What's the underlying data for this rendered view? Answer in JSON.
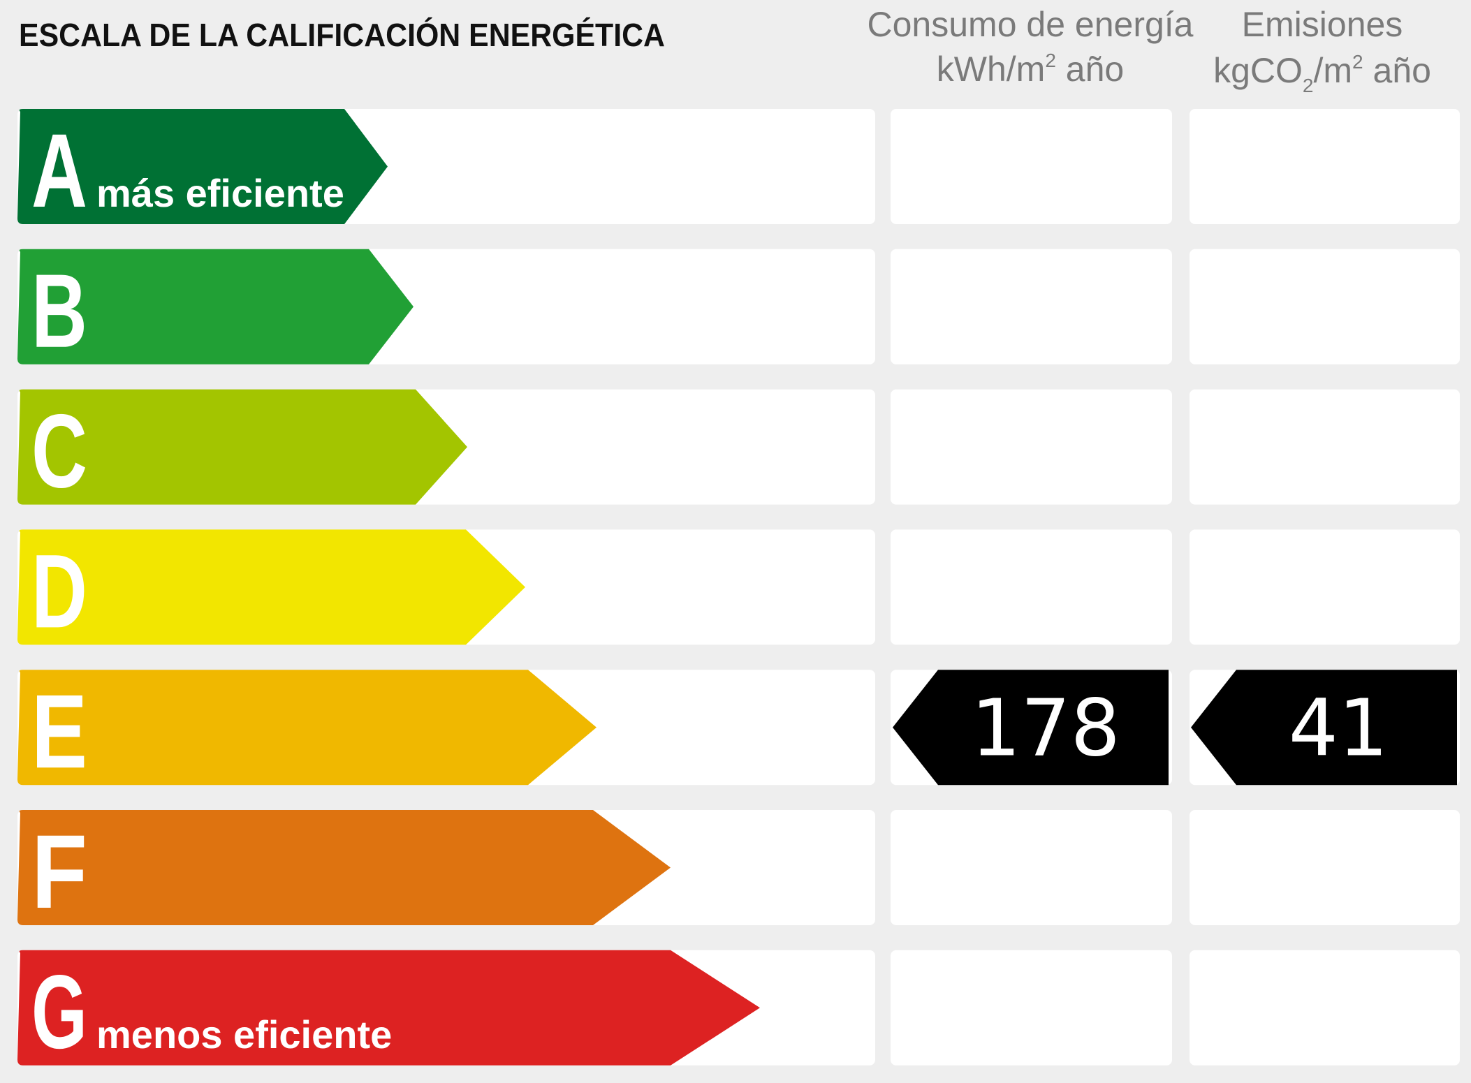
{
  "title": "ESCALA DE LA CALIFICACIÓN ENERGÉTICA",
  "columns": [
    {
      "line1": "Consumo de energía",
      "line2": [
        "kWh/m",
        "2",
        " año"
      ]
    },
    {
      "line1": "Emisiones",
      "line2": [
        "kgCO",
        "2",
        "/m",
        "2",
        " año"
      ]
    }
  ],
  "ratings": [
    {
      "letter": "A",
      "label": "más eficiente",
      "color": "#007134"
    },
    {
      "letter": "B",
      "color": "#21a035"
    },
    {
      "letter": "C",
      "color": "#a3c500"
    },
    {
      "letter": "D",
      "color": "#f2e600"
    },
    {
      "letter": "E",
      "color": "#f0b800"
    },
    {
      "letter": "F",
      "color": "#de7310"
    },
    {
      "letter": "G",
      "label": "menos eficiente",
      "color": "#dd2222"
    }
  ],
  "current": {
    "rating": "E",
    "energy": "178",
    "emissions": "41"
  }
}
